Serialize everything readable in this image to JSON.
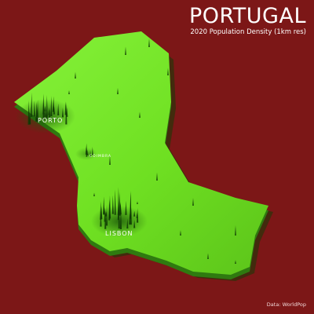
{
  "title": "PORTUGAL",
  "subtitle": "2020 Population Density (1km res)",
  "credit": "Data: WorldPop",
  "cities": {
    "porto": "PORTO",
    "coimbra": "COIMBRA",
    "lisbon": "LISBON"
  },
  "colors": {
    "background": "#7c1717",
    "land_top": "#74e82a",
    "land_side": "#2f7a10",
    "land_shadow": "#123d06",
    "spike": "#0f3a05",
    "text": "#ffffff"
  }
}
